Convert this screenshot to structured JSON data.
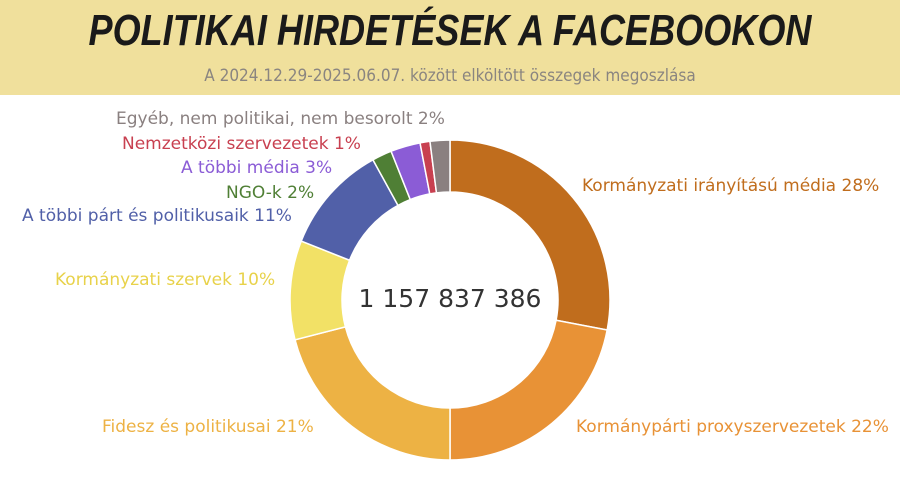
{
  "header": {
    "title": "POLITIKAI HIRDETÉSEK A FACEBOOKON",
    "subtitle": "A 2024.12.29-2025.06.07. között elköltött összegek megoszlása"
  },
  "chart_data": {
    "type": "pie",
    "donut": true,
    "title": "POLITIKAI HIRDETÉSEK A FACEBOOKON",
    "subtitle": "A 2024.12.29-2025.06.07. között elköltött összegek megoszlása",
    "center_label": "1 157 837 386",
    "slices": [
      {
        "name": "Kormányzati irányítású média",
        "value": 28,
        "label": "Kormányzati irányítású média 28%",
        "color": "#C06D1D"
      },
      {
        "name": "Kormánypárti proxyszervezetek",
        "value": 22,
        "label": "Kormánypárti proxyszervezetek 22%",
        "color": "#E89236"
      },
      {
        "name": "Fidesz és politikusai",
        "value": 21,
        "label": "Fidesz és politikusai 21%",
        "color": "#EDB244"
      },
      {
        "name": "Kormányzati szervek",
        "value": 10,
        "label": "Kormányzati szervek 10%",
        "color": "#F2E166"
      },
      {
        "name": "A többi párt és politikusaik",
        "value": 11,
        "label": "A többi párt és politikusaik 11%",
        "color": "#5160A8"
      },
      {
        "name": "NGO-k",
        "value": 2,
        "label": "NGO-k 2%",
        "color": "#4F7F35"
      },
      {
        "name": "A többi média",
        "value": 3,
        "label": "A többi média 3%",
        "color": "#8B5CD6"
      },
      {
        "name": "Nemzetközi szervezetek",
        "value": 1,
        "label": "Nemzetközi szervezetek 1%",
        "color": "#C84050"
      },
      {
        "name": "Egyéb, nem politikai, nem besorolt",
        "value": 2,
        "label": "Egyéb, nem politikai, nem besorolt 2%",
        "color": "#8A8080"
      }
    ]
  }
}
